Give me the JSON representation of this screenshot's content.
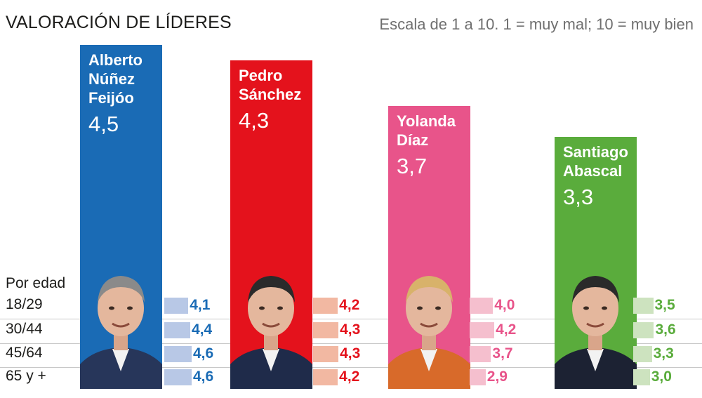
{
  "header": {
    "title": "VALORACIÓN DE LÍDERES",
    "subtitle": "Escala de 1 a 10. 1 = muy mal; 10 = muy bien"
  },
  "age_header": "Por edad",
  "chart_data": {
    "type": "bar",
    "title": "VALORACIÓN DE LÍDERES",
    "subtitle": "Escala de 1 a 10. 1 = muy mal; 10 = muy bien",
    "ylim": [
      0,
      10
    ],
    "categories": [
      "Alberto Núñez Feijóo",
      "Pedro Sánchez",
      "Yolanda Díaz",
      "Santiago Abascal"
    ],
    "values": [
      4.5,
      4.3,
      3.7,
      3.3
    ],
    "age_groups": [
      "18/29",
      "30/44",
      "45/64",
      "65 y +"
    ],
    "leaders": [
      {
        "name": "Alberto\nNúñez\nFeijóo",
        "score": 4.5,
        "score_label": "4,5",
        "color": "#1a6bb5",
        "light": "#b8c8e6",
        "by_age": [
          4.1,
          4.4,
          4.6,
          4.6
        ],
        "by_age_labels": [
          "4,1",
          "4,4",
          "4,6",
          "4,6"
        ]
      },
      {
        "name": "Pedro\nSánchez",
        "score": 4.3,
        "score_label": "4,3",
        "color": "#e4121c",
        "light": "#f2b8a2",
        "by_age": [
          4.2,
          4.3,
          4.3,
          4.2
        ],
        "by_age_labels": [
          "4,2",
          "4,3",
          "4,3",
          "4,2"
        ]
      },
      {
        "name": "Yolanda\nDíaz",
        "score": 3.7,
        "score_label": "3,7",
        "color": "#e8548a",
        "light": "#f5bfce",
        "by_age": [
          4.0,
          4.2,
          3.7,
          2.9
        ],
        "by_age_labels": [
          "4,0",
          "4,2",
          "3,7",
          "2,9"
        ]
      },
      {
        "name": "Santiago\nAbascal",
        "score": 3.3,
        "score_label": "3,3",
        "color": "#5aac3c",
        "light": "#cde3bf",
        "by_age": [
          3.5,
          3.6,
          3.3,
          3.0
        ],
        "by_age_labels": [
          "3,5",
          "3,6",
          "3,3",
          "3,0"
        ]
      }
    ]
  }
}
